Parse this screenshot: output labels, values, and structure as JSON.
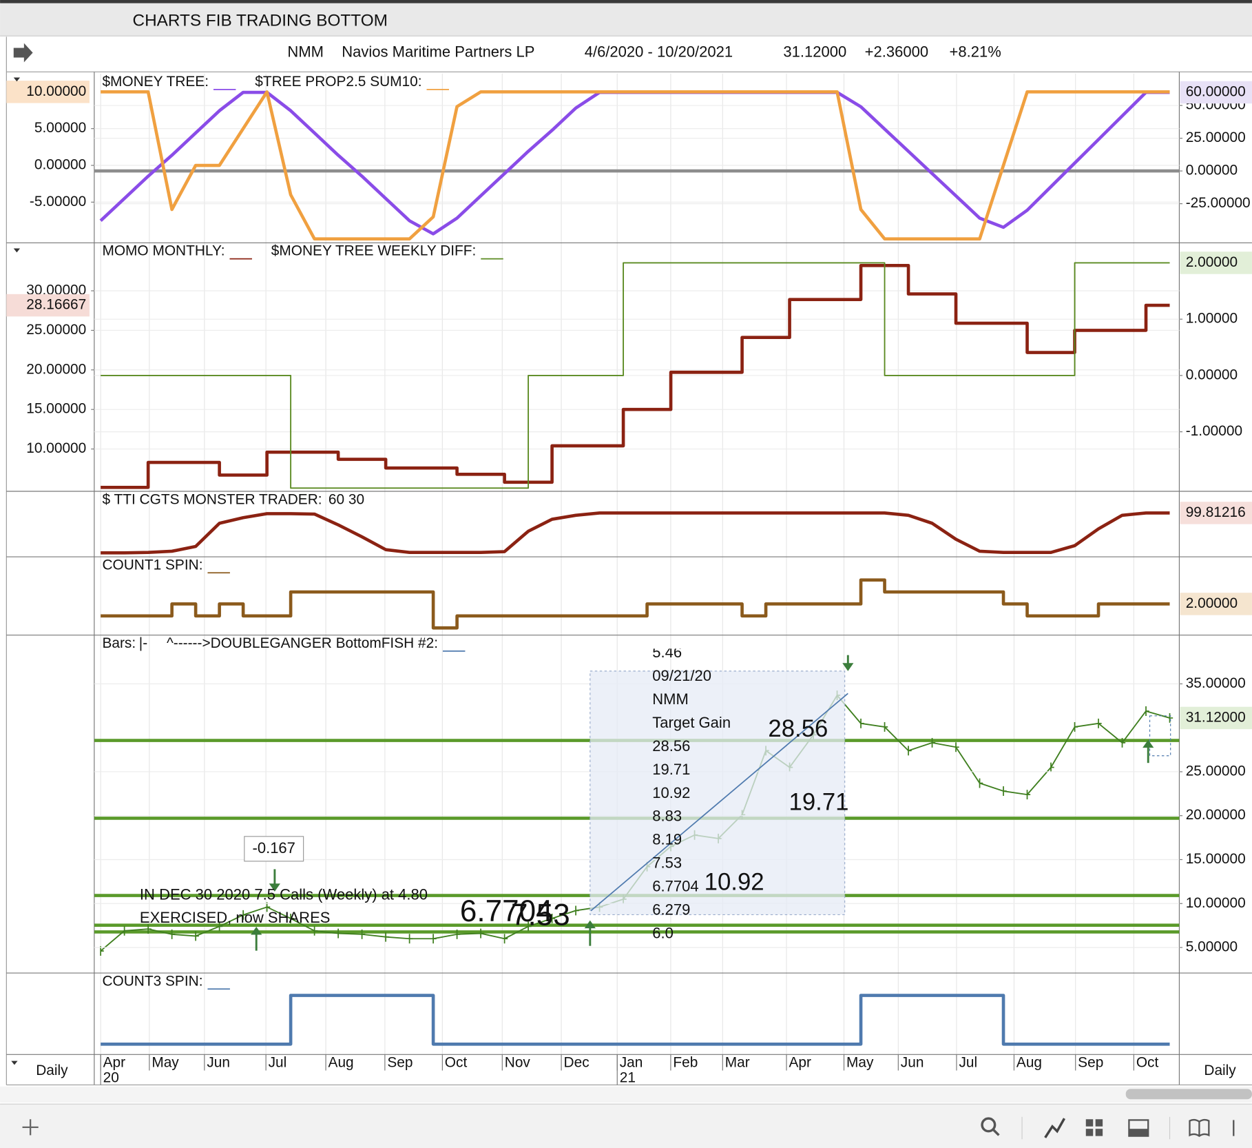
{
  "window": {
    "title": "CHARTS FIB TRADING BOTTOM"
  },
  "header": {
    "symbol": "NMM",
    "name": "Navios Maritime Partners LP",
    "range": "4/6/2020 - 10/20/2021",
    "last": "31.12000",
    "change": "+2.36000",
    "percent": "+8.21%"
  },
  "panels": [
    {
      "series": [
        {
          "name": "$MONEY TREE:",
          "color": "#8a4ce8",
          "axis": "y2",
          "step": false,
          "values": [
            -38,
            -21,
            -4,
            12,
            29,
            46,
            60,
            60,
            46,
            29,
            12,
            -4,
            -21,
            -38,
            -48,
            -36,
            -19,
            -2,
            15,
            31,
            48,
            60,
            60,
            60,
            60,
            60,
            60,
            60,
            60,
            60,
            60,
            60,
            49,
            32,
            15,
            -2,
            -19,
            -36,
            -43,
            -30,
            -12,
            6,
            24,
            42,
            60,
            60
          ]
        },
        {
          "name": "$TREE PROP2.5 SUM10:",
          "color": "#f0a040",
          "axis": "y",
          "step": false,
          "values": [
            10,
            10,
            10,
            -6,
            0,
            0,
            5,
            10,
            -4,
            -10,
            -10,
            -10,
            -10,
            -10,
            -7,
            8,
            10,
            10,
            10,
            10,
            10,
            10,
            10,
            10,
            10,
            10,
            10,
            10,
            10,
            10,
            10,
            10,
            -6,
            -10,
            -10,
            -10,
            -10,
            -10,
            0,
            10,
            10,
            10,
            10,
            10,
            10,
            10
          ]
        }
      ],
      "ylim": [
        -10.54,
        12.5
      ],
      "yticks": [
        {
          "value": 5,
          "label": "5.00000"
        },
        {
          "value": 0,
          "label": "0.00000"
        },
        {
          "value": -5,
          "label": "-5.00000"
        }
      ],
      "y_last": {
        "value": 10,
        "label": "10.00000",
        "color": "#fbe2c8"
      },
      "y2lim": [
        -54.88,
        74.39
      ],
      "y2ticks": [
        {
          "value": 50,
          "label": "50.00000"
        },
        {
          "value": 25,
          "label": "25.00000"
        },
        {
          "value": 0,
          "label": "0.00000"
        },
        {
          "value": -25,
          "label": "-25.00000"
        }
      ],
      "y2_last": {
        "value": 60,
        "label": "60.00000",
        "color": "#e8e1f6"
      },
      "zero_line": {
        "axis": "y2",
        "value": 0,
        "color": "#8c8c8c"
      }
    },
    {
      "series": [
        {
          "name": "MOMO MONTHLY:",
          "color": "#8b2212",
          "axis": "y",
          "step": true,
          "values": [
            5.15,
            5.15,
            8.3,
            8.3,
            8.3,
            6.7,
            6.7,
            9.6,
            9.6,
            9.6,
            8.7,
            8.7,
            7.6,
            7.6,
            7.6,
            6.8,
            6.8,
            5.8,
            5.8,
            10.4,
            10.4,
            10.4,
            15,
            15,
            19.7,
            19.7,
            19.7,
            24.1,
            24.1,
            28.9,
            28.9,
            28.9,
            33.2,
            33.2,
            29.6,
            29.6,
            25.9,
            25.9,
            25.9,
            22.2,
            22.2,
            25,
            25,
            25,
            28.16667,
            28.16667
          ]
        },
        {
          "name": "$MONEY TREE WEEKLY DIFF:",
          "color": "#5a8a20",
          "axis": "y2",
          "step": true,
          "values": [
            0,
            0,
            0,
            0,
            0,
            0,
            0,
            0,
            -2,
            -2,
            -2,
            -2,
            -2,
            -2,
            -2,
            -2,
            -2,
            -2,
            0,
            0,
            0,
            0,
            2,
            2,
            2,
            2,
            2,
            2,
            2,
            2,
            2,
            2,
            2,
            0,
            0,
            0,
            0,
            0,
            0,
            0,
            0,
            2,
            2,
            2,
            2,
            2
          ]
        }
      ],
      "ylim": [
        4.65,
        36.06
      ],
      "yticks": [
        {
          "value": 30,
          "label": "30.00000"
        },
        {
          "value": 25,
          "label": "25.00000"
        },
        {
          "value": 20,
          "label": "20.00000"
        },
        {
          "value": 15,
          "label": "15.00000"
        },
        {
          "value": 10,
          "label": "10.00000"
        }
      ],
      "y_last": {
        "value": 28.16667,
        "label": "28.16667",
        "color": "#f6dcd7"
      },
      "y2lim": [
        -2.057,
        2.355
      ],
      "y2ticks": [
        {
          "value": 1,
          "label": "1.00000"
        },
        {
          "value": 0,
          "label": "0.00000"
        },
        {
          "value": -1,
          "label": "-1.00000"
        }
      ],
      "y2_last": {
        "value": 2,
        "label": "2.00000",
        "color": "#e2efd8"
      }
    },
    {
      "series": [
        {
          "name": "$ TTI CGTS MONSTER TRADER:",
          "params": "60 30",
          "color": "#8b2212",
          "axis": "y2",
          "step": false,
          "values": [
            0,
            0,
            1,
            4,
            16,
            74,
            88,
            98,
            98,
            97,
            70,
            40,
            8,
            1,
            1,
            1,
            1,
            3,
            54,
            84,
            94,
            99.8,
            99.8,
            99.8,
            99.8,
            99.8,
            99.8,
            99.8,
            99.8,
            99.8,
            99.8,
            99.8,
            99.8,
            99.8,
            94,
            74,
            34,
            4,
            1,
            1,
            1,
            18,
            60,
            94,
            99.8,
            99.81216
          ]
        }
      ],
      "y2lim": [
        -10,
        154
      ],
      "y2_last": {
        "value": 99.81216,
        "label": "99.81216",
        "color": "#f6dfdb"
      }
    },
    {
      "series": [
        {
          "name": "COUNT1 SPIN:",
          "color": "#8b5a1c",
          "axis": "y2",
          "step": true,
          "values": [
            1,
            1,
            1,
            2,
            1,
            2,
            1,
            1,
            3,
            3,
            3,
            3,
            3,
            3,
            0,
            1,
            1,
            1,
            1,
            1,
            1,
            1,
            1,
            2,
            2,
            2,
            2,
            1,
            2,
            2,
            2,
            2,
            4,
            3,
            3,
            3,
            3,
            3,
            2,
            1,
            1,
            1,
            2,
            2,
            2,
            2
          ]
        }
      ],
      "y2lim": [
        -0.6,
        5.93
      ],
      "y2_last": {
        "value": 2,
        "label": "2.00000",
        "color": "#f5e5cf"
      }
    },
    {
      "series": [
        {
          "name": "Bars:",
          "marker": "|-",
          "color": "#3f7f1f",
          "axis": "y2",
          "step": false,
          "values": [
            4.6,
            6.9,
            7.1,
            6.5,
            6.3,
            7.4,
            8.7,
            9.6,
            8.3,
            6.9,
            6.6,
            6.5,
            6.2,
            6.0,
            6.0,
            6.5,
            6.6,
            6.0,
            7.4,
            8.3,
            9.2,
            9.6,
            10.5,
            14.2,
            16.5,
            17.8,
            17.4,
            20.1,
            27.4,
            25.5,
            29.2,
            33.7,
            30.5,
            30.1,
            27.4,
            28.3,
            27.8,
            23.7,
            22.8,
            22.4,
            25.5,
            30.1,
            30.5,
            28.3,
            31.9,
            31.12
          ]
        }
      ],
      "extra_legend": {
        "name": "^------>DOUBLEGANGER BottomFISH  #2:",
        "color": "#4f7aae"
      },
      "y2lim": [
        2.09,
        40.55
      ],
      "y2ticks": [
        {
          "value": 35,
          "label": "35.00000"
        },
        {
          "value": 25,
          "label": "25.00000"
        },
        {
          "value": 20,
          "label": "20.00000"
        },
        {
          "value": 15,
          "label": "15.00000"
        },
        {
          "value": 10,
          "label": "10.00000"
        },
        {
          "value": 5,
          "label": "5.00000"
        }
      ],
      "y2_last": {
        "value": 31.12,
        "label": "31.12000",
        "color": "#e2efd8"
      },
      "levels": {
        "color": "#5a9a2a",
        "values": [
          28.56,
          19.71,
          10.92,
          7.53,
          6.7704
        ]
      },
      "target_box": {
        "lines": [
          "5.46",
          "09/21/20",
          "NMM",
          "Target Gain"
        ],
        "levels": [
          28.56,
          19.71,
          10.92,
          8.83,
          8.19,
          7.53,
          6.7704,
          6.279,
          {
            "value": 6,
            "label": "6.0"
          }
        ]
      },
      "box_value": -0.167,
      "note_lines": [
        "IN DEC 30 2020 7.5 Calls (Weekly) at 4.80",
        "EXERCISED, now SHARES"
      ]
    },
    {
      "series": [
        {
          "name": "COUNT3 SPIN:",
          "color": "#4f7aae",
          "axis": "y",
          "step": true,
          "values": [
            0,
            0,
            0,
            0,
            0,
            0,
            0,
            0,
            1,
            1,
            1,
            1,
            1,
            1,
            0,
            0,
            0,
            0,
            0,
            0,
            0,
            0,
            0,
            0,
            0,
            0,
            0,
            0,
            0,
            0,
            0,
            0,
            1,
            1,
            1,
            1,
            1,
            1,
            0,
            0,
            0,
            0,
            0,
            0,
            0,
            0
          ]
        }
      ],
      "ylim": [
        -0.213,
        1.459
      ]
    }
  ],
  "x_axis": {
    "months": [
      "Apr",
      "May",
      "Jun",
      "Jul",
      "Aug",
      "Sep",
      "Oct",
      "Nov",
      "Dec",
      "Jan",
      "Feb",
      "Mar",
      "Apr",
      "May",
      "Jun",
      "Jul",
      "Aug",
      "Sep",
      "Oct"
    ],
    "years": [
      "20",
      "21"
    ]
  },
  "footer": {
    "left": "Daily",
    "right": "Daily"
  }
}
